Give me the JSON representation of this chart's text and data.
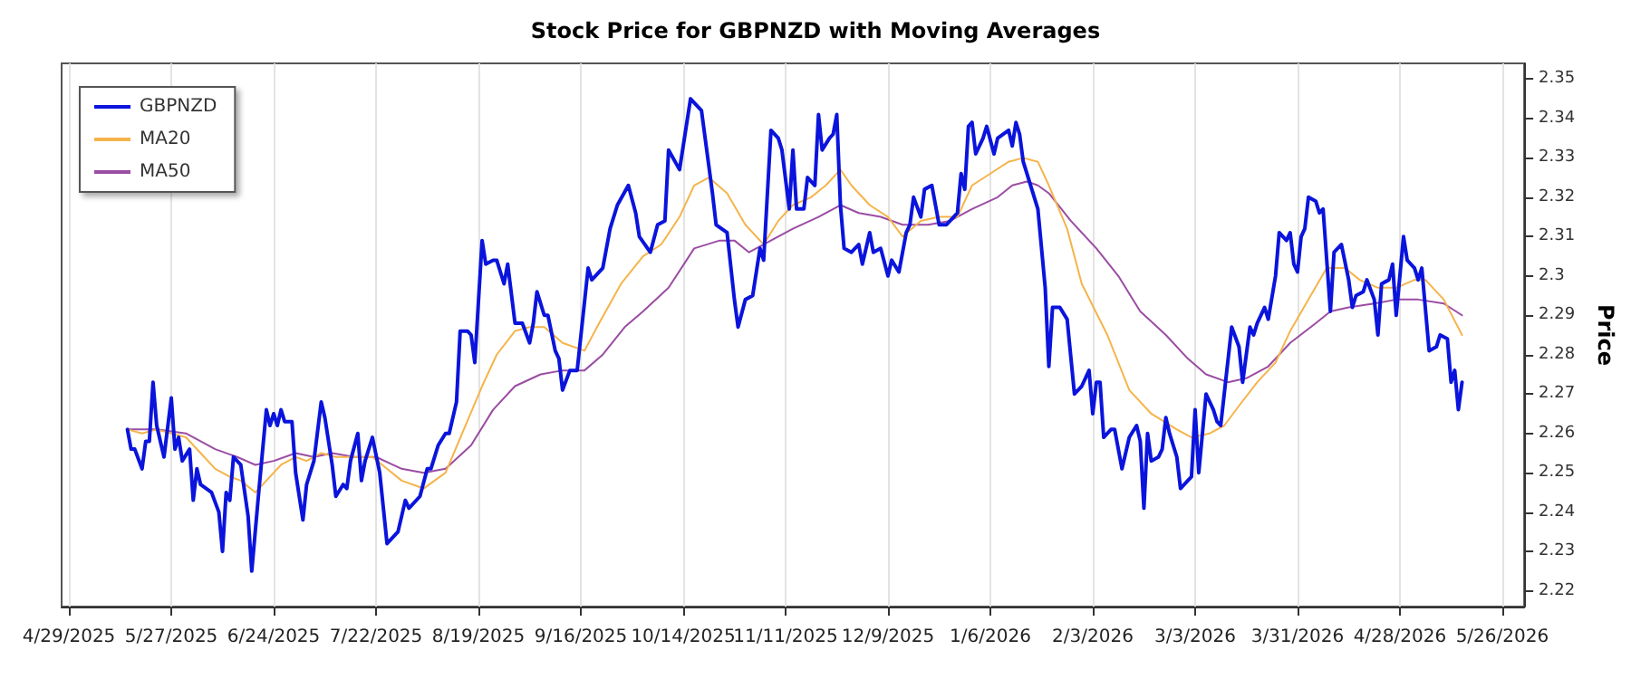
{
  "chart_data": {
    "type": "line",
    "title": "Stock Price for GBPNZD with Moving Averages",
    "ylabel": "Price",
    "xlim": [
      "2025-04-27",
      "2026-06-01"
    ],
    "xticks": [
      {
        "value": "2025-04-29",
        "label": "4/29/2025"
      },
      {
        "value": "2025-05-27",
        "label": "5/27/2025"
      },
      {
        "value": "2025-06-24",
        "label": "6/24/2025"
      },
      {
        "value": "2025-07-22",
        "label": "7/22/2025"
      },
      {
        "value": "2025-08-19",
        "label": "8/19/2025"
      },
      {
        "value": "2025-09-16",
        "label": "9/16/2025"
      },
      {
        "value": "2025-10-14",
        "label": "10/14/2025"
      },
      {
        "value": "2025-11-11",
        "label": "11/11/2025"
      },
      {
        "value": "2025-12-09",
        "label": "12/9/2025"
      },
      {
        "value": "2026-01-06",
        "label": "1/6/2026"
      },
      {
        "value": "2026-02-03",
        "label": "2/3/2026"
      },
      {
        "value": "2026-03-03",
        "label": "3/3/2026"
      },
      {
        "value": "2026-03-31",
        "label": "3/31/2026"
      },
      {
        "value": "2026-04-28",
        "label": "4/28/2026"
      },
      {
        "value": "2026-05-26",
        "label": "5/26/2026"
      }
    ],
    "ylim": [
      2.216,
      2.354
    ],
    "yticks": [
      2.22,
      2.23,
      2.24,
      2.25,
      2.26,
      2.27,
      2.28,
      2.29,
      2.3,
      2.31,
      2.32,
      2.33,
      2.34,
      2.35
    ],
    "grid": "x",
    "legend": "top left",
    "marker": "none",
    "line_style": "solid",
    "series": [
      {
        "name": "GBPNZD",
        "color": "#0a14dc",
        "x": [
          "2025-05-15",
          "2025-05-16",
          "2025-05-17",
          "2025-05-19",
          "2025-05-20",
          "2025-05-21",
          "2025-05-22",
          "2025-05-23",
          "2025-05-25",
          "2025-05-27",
          "2025-05-28",
          "2025-05-29",
          "2025-05-30",
          "2025-06-01",
          "2025-06-02",
          "2025-06-03",
          "2025-06-04",
          "2025-06-07",
          "2025-06-09",
          "2025-06-10",
          "2025-06-11",
          "2025-06-12",
          "2025-06-13",
          "2025-06-15",
          "2025-06-17",
          "2025-06-18",
          "2025-06-20",
          "2025-06-22",
          "2025-06-23",
          "2025-06-24",
          "2025-06-25",
          "2025-06-26",
          "2025-06-27",
          "2025-06-29",
          "2025-06-30",
          "2025-07-02",
          "2025-07-03",
          "2025-07-05",
          "2025-07-07",
          "2025-07-08",
          "2025-07-10",
          "2025-07-11",
          "2025-07-13",
          "2025-07-14",
          "2025-07-15",
          "2025-07-17",
          "2025-07-18",
          "2025-07-19",
          "2025-07-21",
          "2025-07-23",
          "2025-07-25",
          "2025-07-28",
          "2025-07-30",
          "2025-07-31",
          "2025-08-03",
          "2025-08-05",
          "2025-08-06",
          "2025-08-08",
          "2025-08-10",
          "2025-08-11",
          "2025-08-13",
          "2025-08-14",
          "2025-08-16",
          "2025-08-17",
          "2025-08-18",
          "2025-08-20",
          "2025-08-21",
          "2025-08-23",
          "2025-08-24",
          "2025-08-26",
          "2025-08-27",
          "2025-08-29",
          "2025-08-31",
          "2025-09-02",
          "2025-09-03",
          "2025-09-04",
          "2025-09-06",
          "2025-09-07",
          "2025-09-09",
          "2025-09-10",
          "2025-09-11",
          "2025-09-13",
          "2025-09-15",
          "2025-09-18",
          "2025-09-19",
          "2025-09-22",
          "2025-09-24",
          "2025-09-26",
          "2025-09-29",
          "2025-10-01",
          "2025-10-02",
          "2025-10-05",
          "2025-10-07",
          "2025-10-09",
          "2025-10-10",
          "2025-10-13",
          "2025-10-16",
          "2025-10-19",
          "2025-10-21",
          "2025-10-22",
          "2025-10-23",
          "2025-10-26",
          "2025-10-28",
          "2025-10-29",
          "2025-10-31",
          "2025-11-02",
          "2025-11-04",
          "2025-11-05",
          "2025-11-07",
          "2025-11-09",
          "2025-11-10",
          "2025-11-12",
          "2025-11-13",
          "2025-11-14",
          "2025-11-16",
          "2025-11-17",
          "2025-11-19",
          "2025-11-20",
          "2025-11-21",
          "2025-11-23",
          "2025-11-24",
          "2025-11-25",
          "2025-11-26",
          "2025-11-27",
          "2025-11-29",
          "2025-12-01",
          "2025-12-02",
          "2025-12-04",
          "2025-12-05",
          "2025-12-07",
          "2025-12-09",
          "2025-12-10",
          "2025-12-12",
          "2025-12-14",
          "2025-12-15",
          "2025-12-16",
          "2025-12-18",
          "2025-12-19",
          "2025-12-21",
          "2025-12-23",
          "2025-12-25",
          "2025-12-28",
          "2025-12-29",
          "2025-12-30",
          "2025-12-31",
          "2026-01-01",
          "2026-01-02",
          "2026-01-04",
          "2026-01-05",
          "2026-01-07",
          "2026-01-08",
          "2026-01-11",
          "2026-01-12",
          "2026-01-13",
          "2026-01-14",
          "2026-01-15",
          "2026-01-19",
          "2026-01-21",
          "2026-01-22",
          "2026-01-23",
          "2026-01-25",
          "2026-01-27",
          "2026-01-29",
          "2026-01-31",
          "2026-02-02",
          "2026-02-03",
          "2026-02-04",
          "2026-02-05",
          "2026-02-06",
          "2026-02-08",
          "2026-02-09",
          "2026-02-11",
          "2026-02-13",
          "2026-02-15",
          "2026-02-16",
          "2026-02-17",
          "2026-02-18",
          "2026-02-19",
          "2026-02-21",
          "2026-02-22",
          "2026-02-23",
          "2026-02-24",
          "2026-02-26",
          "2026-02-27",
          "2026-03-01",
          "2026-03-02",
          "2026-03-03",
          "2026-03-04",
          "2026-03-06",
          "2026-03-08",
          "2026-03-09",
          "2026-03-10",
          "2026-03-13",
          "2026-03-15",
          "2026-03-16",
          "2026-03-18",
          "2026-03-19",
          "2026-03-20",
          "2026-03-22",
          "2026-03-23",
          "2026-03-25",
          "2026-03-26",
          "2026-03-28",
          "2026-03-29",
          "2026-03-30",
          "2026-03-31",
          "2026-04-01",
          "2026-04-02",
          "2026-04-03",
          "2026-04-05",
          "2026-04-06",
          "2026-04-07",
          "2026-04-09",
          "2026-04-10",
          "2026-04-12",
          "2026-04-14",
          "2026-04-15",
          "2026-04-16",
          "2026-04-18",
          "2026-04-19",
          "2026-04-21",
          "2026-04-22",
          "2026-04-23",
          "2026-04-25",
          "2026-04-26",
          "2026-04-27",
          "2026-04-29",
          "2026-04-30",
          "2026-05-02",
          "2026-05-03",
          "2026-05-04",
          "2026-05-06",
          "2026-05-08",
          "2026-05-09",
          "2026-05-11",
          "2026-05-12",
          "2026-05-13",
          "2026-05-14",
          "2026-05-15"
        ],
        "values": [
          2.261,
          2.256,
          2.256,
          2.251,
          2.258,
          2.258,
          2.273,
          2.262,
          2.254,
          2.269,
          2.256,
          2.259,
          2.253,
          2.256,
          2.243,
          2.251,
          2.247,
          2.245,
          2.24,
          2.23,
          2.245,
          2.243,
          2.254,
          2.252,
          2.239,
          2.225,
          2.246,
          2.266,
          2.262,
          2.265,
          2.262,
          2.266,
          2.263,
          2.263,
          2.25,
          2.238,
          2.247,
          2.253,
          2.268,
          2.264,
          2.252,
          2.244,
          2.247,
          2.246,
          2.253,
          2.26,
          2.248,
          2.253,
          2.259,
          2.25,
          2.232,
          2.235,
          2.243,
          2.241,
          2.244,
          2.251,
          2.251,
          2.257,
          2.26,
          2.26,
          2.268,
          2.286,
          2.286,
          2.285,
          2.278,
          2.309,
          2.303,
          2.304,
          2.304,
          2.298,
          2.303,
          2.288,
          2.288,
          2.283,
          2.288,
          2.296,
          2.29,
          2.29,
          2.281,
          2.279,
          2.271,
          2.276,
          2.276,
          2.302,
          2.299,
          2.302,
          2.312,
          2.318,
          2.323,
          2.316,
          2.31,
          2.306,
          2.313,
          2.314,
          2.332,
          2.327,
          2.345,
          2.342,
          2.328,
          2.321,
          2.313,
          2.311,
          2.294,
          2.287,
          2.294,
          2.295,
          2.307,
          2.304,
          2.337,
          2.335,
          2.332,
          2.317,
          2.332,
          2.317,
          2.317,
          2.325,
          2.323,
          2.341,
          2.332,
          2.335,
          2.336,
          2.341,
          2.318,
          2.307,
          2.306,
          2.308,
          2.303,
          2.311,
          2.306,
          2.307,
          2.3,
          2.304,
          2.301,
          2.311,
          2.313,
          2.32,
          2.315,
          2.322,
          2.323,
          2.313,
          2.313,
          2.316,
          2.326,
          2.322,
          2.338,
          2.339,
          2.331,
          2.335,
          2.338,
          2.331,
          2.335,
          2.337,
          2.333,
          2.339,
          2.336,
          2.329,
          2.317,
          2.297,
          2.277,
          2.292,
          2.292,
          2.289,
          2.27,
          2.272,
          2.276,
          2.265,
          2.273,
          2.273,
          2.259,
          2.261,
          2.261,
          2.251,
          2.259,
          2.262,
          2.258,
          2.241,
          2.26,
          2.253,
          2.254,
          2.256,
          2.264,
          2.26,
          2.254,
          2.246,
          2.248,
          2.249,
          2.266,
          2.25,
          2.27,
          2.266,
          2.263,
          2.262,
          2.287,
          2.282,
          2.273,
          2.287,
          2.285,
          2.288,
          2.292,
          2.289,
          2.3,
          2.311,
          2.309,
          2.311,
          2.303,
          2.301,
          2.31,
          2.312,
          2.32,
          2.319,
          2.316,
          2.317,
          2.291,
          2.306,
          2.308,
          2.299,
          2.292,
          2.295,
          2.296,
          2.299,
          2.294,
          2.285,
          2.298,
          2.299,
          2.303,
          2.29,
          2.31,
          2.304,
          2.302,
          2.299,
          2.302,
          2.281,
          2.282,
          2.285,
          2.284,
          2.273,
          2.276,
          2.266,
          2.273
        ]
      },
      {
        "name": "MA20",
        "color": "#f5b44a",
        "x": [
          "2025-05-15",
          "2025-05-19",
          "2025-05-23",
          "2025-05-27",
          "2025-05-31",
          "2025-06-05",
          "2025-06-08",
          "2025-06-12",
          "2025-06-15",
          "2025-06-19",
          "2025-06-22",
          "2025-06-26",
          "2025-06-30",
          "2025-07-03",
          "2025-07-07",
          "2025-07-11",
          "2025-07-16",
          "2025-07-21",
          "2025-07-25",
          "2025-07-29",
          "2025-08-04",
          "2025-08-10",
          "2025-08-15",
          "2025-08-20",
          "2025-08-24",
          "2025-08-29",
          "2025-09-02",
          "2025-09-06",
          "2025-09-11",
          "2025-09-17",
          "2025-09-21",
          "2025-09-27",
          "2025-10-03",
          "2025-10-08",
          "2025-10-13",
          "2025-10-17",
          "2025-10-21",
          "2025-10-26",
          "2025-10-31",
          "2025-11-05",
          "2025-11-09",
          "2025-11-13",
          "2025-11-18",
          "2025-11-22",
          "2025-11-26",
          "2025-11-29",
          "2025-12-04",
          "2025-12-09",
          "2025-12-13",
          "2025-12-18",
          "2025-12-23",
          "2025-12-28",
          "2026-01-01",
          "2026-01-06",
          "2026-01-11",
          "2026-01-15",
          "2026-01-19",
          "2026-01-22",
          "2026-01-27",
          "2026-01-31",
          "2026-02-07",
          "2026-02-13",
          "2026-02-19",
          "2026-02-26",
          "2026-03-02",
          "2026-03-07",
          "2026-03-11",
          "2026-03-15",
          "2026-03-20",
          "2026-03-25",
          "2026-03-29",
          "2026-04-03",
          "2026-04-08",
          "2026-04-13",
          "2026-04-17",
          "2026-04-22",
          "2026-04-27",
          "2026-05-02",
          "2026-05-05",
          "2026-05-10",
          "2026-05-15"
        ],
        "values": [
          2.261,
          2.26,
          2.261,
          2.26,
          2.259,
          2.254,
          2.251,
          2.249,
          2.248,
          2.245,
          2.248,
          2.252,
          2.254,
          2.253,
          2.255,
          2.254,
          2.254,
          2.254,
          2.251,
          2.248,
          2.246,
          2.25,
          2.261,
          2.272,
          2.28,
          2.286,
          2.287,
          2.287,
          2.283,
          2.281,
          2.288,
          2.298,
          2.305,
          2.308,
          2.315,
          2.323,
          2.325,
          2.321,
          2.313,
          2.308,
          2.314,
          2.318,
          2.32,
          2.323,
          2.327,
          2.323,
          2.318,
          2.315,
          2.31,
          2.314,
          2.315,
          2.315,
          2.323,
          2.326,
          2.329,
          2.33,
          2.329,
          2.323,
          2.312,
          2.298,
          2.285,
          2.271,
          2.265,
          2.261,
          2.259,
          2.26,
          2.262,
          2.267,
          2.273,
          2.278,
          2.286,
          2.294,
          2.302,
          2.302,
          2.299,
          2.297,
          2.297,
          2.299,
          2.299,
          2.294,
          2.285
        ]
      },
      {
        "name": "MA50",
        "color": "#9b4ca3",
        "x": [
          "2025-05-15",
          "2025-05-23",
          "2025-05-31",
          "2025-06-08",
          "2025-06-14",
          "2025-06-19",
          "2025-06-24",
          "2025-06-30",
          "2025-07-05",
          "2025-07-10",
          "2025-07-16",
          "2025-07-22",
          "2025-07-29",
          "2025-08-04",
          "2025-08-10",
          "2025-08-17",
          "2025-08-23",
          "2025-08-29",
          "2025-09-05",
          "2025-09-11",
          "2025-09-17",
          "2025-09-22",
          "2025-09-28",
          "2025-10-03",
          "2025-10-10",
          "2025-10-17",
          "2025-10-24",
          "2025-10-28",
          "2025-11-01",
          "2025-11-07",
          "2025-11-13",
          "2025-11-20",
          "2025-11-26",
          "2025-12-01",
          "2025-12-07",
          "2025-12-13",
          "2025-12-20",
          "2025-12-26",
          "2026-01-01",
          "2026-01-08",
          "2026-01-12",
          "2026-01-16",
          "2026-01-19",
          "2026-01-22",
          "2026-01-28",
          "2026-02-04",
          "2026-02-10",
          "2026-02-16",
          "2026-02-23",
          "2026-03-01",
          "2026-03-06",
          "2026-03-12",
          "2026-03-17",
          "2026-03-23",
          "2026-03-29",
          "2026-04-05",
          "2026-04-09",
          "2026-04-14",
          "2026-04-21",
          "2026-04-27",
          "2026-05-03",
          "2026-05-10",
          "2026-05-15"
        ],
        "values": [
          2.261,
          2.261,
          2.26,
          2.256,
          2.254,
          2.252,
          2.253,
          2.255,
          2.254,
          2.255,
          2.254,
          2.254,
          2.251,
          2.25,
          2.251,
          2.257,
          2.266,
          2.272,
          2.275,
          2.276,
          2.276,
          2.28,
          2.287,
          2.291,
          2.297,
          2.307,
          2.309,
          2.309,
          2.306,
          2.309,
          2.312,
          2.315,
          2.318,
          2.316,
          2.315,
          2.313,
          2.313,
          2.314,
          2.317,
          2.32,
          2.323,
          2.324,
          2.323,
          2.321,
          2.314,
          2.307,
          2.3,
          2.291,
          2.285,
          2.279,
          2.275,
          2.273,
          2.274,
          2.277,
          2.283,
          2.288,
          2.291,
          2.292,
          2.293,
          2.294,
          2.294,
          2.293,
          2.29
        ]
      }
    ]
  }
}
